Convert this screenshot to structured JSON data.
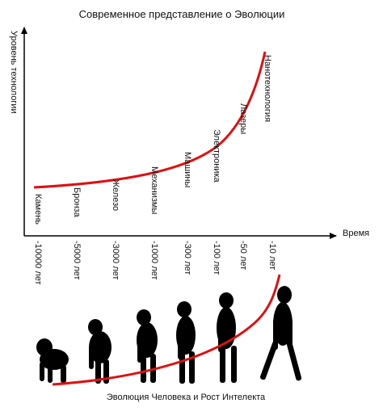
{
  "title": "Современное представление о Эволюции",
  "y_axis_label": "Уровень технологии",
  "x_axis_label": "Время",
  "time_labels": [
    "-10000 лет",
    "-5000 лет",
    "-3000 лет",
    "-1000 лет",
    "-300 лет",
    "-100 лет",
    "-50 лет",
    "-10 лет"
  ],
  "stages": [
    "Камень",
    "Бронза",
    "Железо",
    "Механизмы",
    "Машины",
    "Электроника",
    "Лазеры",
    "Нанотехнология"
  ],
  "caption": "Эволюция Человека и Рост Интелекта"
}
